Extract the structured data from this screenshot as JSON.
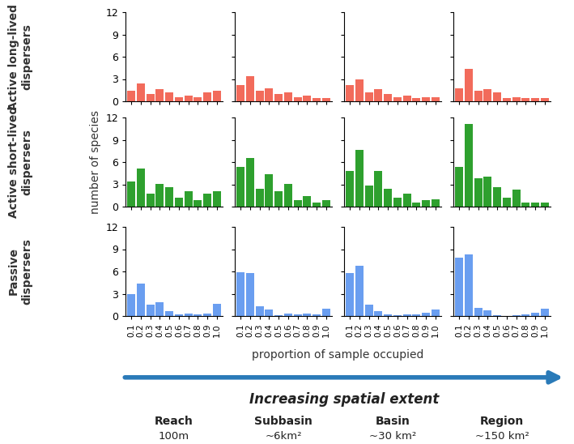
{
  "chart_data": [
    {
      "type": "bar",
      "categories": [
        "0.1",
        "0.2",
        "0.3",
        "0.4",
        "0.5",
        "0.6",
        "0.7",
        "0.8",
        "0.9",
        "1.0"
      ],
      "values": [
        1.4,
        2.4,
        1.0,
        1.6,
        1.2,
        0.6,
        0.8,
        0.6,
        1.2,
        1.4
      ],
      "color": "#f26b5b",
      "ylim": [
        0,
        12
      ],
      "yticks": [
        0,
        3,
        6,
        9,
        12
      ],
      "tick_labels": "y"
    },
    {
      "type": "bar",
      "categories": [
        "0.1",
        "0.2",
        "0.3",
        "0.4",
        "0.5",
        "0.6",
        "0.7",
        "0.8",
        "0.9",
        "1.0"
      ],
      "values": [
        2.2,
        3.4,
        1.4,
        1.8,
        1.0,
        1.2,
        0.6,
        0.8,
        0.4,
        0.4
      ],
      "color": "#f26b5b",
      "ylim": [
        0,
        12
      ],
      "yticks": [
        0,
        3,
        6,
        9,
        12
      ],
      "tick_labels": false
    },
    {
      "type": "bar",
      "categories": [
        "0.1",
        "0.2",
        "0.3",
        "0.4",
        "0.5",
        "0.6",
        "0.7",
        "0.8",
        "0.9",
        "1.0"
      ],
      "values": [
        2.2,
        3.0,
        1.2,
        1.6,
        1.0,
        0.6,
        0.8,
        0.4,
        0.6,
        0.6
      ],
      "color": "#f26b5b",
      "ylim": [
        0,
        12
      ],
      "yticks": [
        0,
        3,
        6,
        9,
        12
      ],
      "tick_labels": false
    },
    {
      "type": "bar",
      "categories": [
        "0.1",
        "0.2",
        "0.3",
        "0.4",
        "0.5",
        "0.6",
        "0.7",
        "0.8",
        "0.9",
        "1.0"
      ],
      "values": [
        1.8,
        4.4,
        1.4,
        1.6,
        1.2,
        0.4,
        0.6,
        0.4,
        0.4,
        0.4
      ],
      "color": "#f26b5b",
      "ylim": [
        0,
        12
      ],
      "yticks": [
        0,
        3,
        6,
        9,
        12
      ],
      "tick_labels": false
    },
    {
      "type": "bar",
      "categories": [
        "0.1",
        "0.2",
        "0.3",
        "0.4",
        "0.5",
        "0.6",
        "0.7",
        "0.8",
        "0.9",
        "1.0"
      ],
      "values": [
        3.4,
        5.1,
        1.8,
        3.1,
        2.6,
        1.2,
        2.1,
        0.9,
        1.7,
        2.1
      ],
      "color": "#2ea02e",
      "ylim": [
        0,
        12
      ],
      "yticks": [
        0,
        3,
        6,
        9,
        12
      ],
      "tick_labels": "y",
      "y_label": "number of species"
    },
    {
      "type": "bar",
      "categories": [
        "0.1",
        "0.2",
        "0.3",
        "0.4",
        "0.5",
        "0.6",
        "0.7",
        "0.8",
        "0.9",
        "1.0"
      ],
      "values": [
        5.4,
        6.6,
        2.4,
        4.4,
        2.1,
        3.1,
        0.9,
        1.4,
        0.5,
        0.9
      ],
      "color": "#2ea02e",
      "ylim": [
        0,
        12
      ],
      "yticks": [
        0,
        3,
        6,
        9,
        12
      ],
      "tick_labels": false
    },
    {
      "type": "bar",
      "categories": [
        "0.1",
        "0.2",
        "0.3",
        "0.4",
        "0.5",
        "0.6",
        "0.7",
        "0.8",
        "0.9",
        "1.0"
      ],
      "values": [
        4.8,
        7.6,
        2.8,
        4.8,
        2.4,
        1.2,
        1.7,
        0.6,
        0.9,
        1.0
      ],
      "color": "#2ea02e",
      "ylim": [
        0,
        12
      ],
      "yticks": [
        0,
        3,
        6,
        9,
        12
      ],
      "tick_labels": false
    },
    {
      "type": "bar",
      "categories": [
        "0.1",
        "0.2",
        "0.3",
        "0.4",
        "0.5",
        "0.6",
        "0.7",
        "0.8",
        "0.9",
        "1.0"
      ],
      "values": [
        5.4,
        11.1,
        3.8,
        4.0,
        2.6,
        1.2,
        2.3,
        0.6,
        0.6,
        0.6
      ],
      "color": "#2ea02e",
      "ylim": [
        0,
        12
      ],
      "yticks": [
        0,
        3,
        6,
        9,
        12
      ],
      "tick_labels": false
    },
    {
      "type": "bar",
      "categories": [
        "0.1",
        "0.2",
        "0.3",
        "0.4",
        "0.5",
        "0.6",
        "0.7",
        "0.8",
        "0.9",
        "1.0"
      ],
      "values": [
        2.9,
        4.4,
        1.5,
        1.9,
        0.7,
        0.2,
        0.3,
        0.2,
        0.3,
        1.6
      ],
      "color": "#6a9ef0",
      "ylim": [
        0,
        12
      ],
      "yticks": [
        0,
        3,
        6,
        9,
        12
      ]
    },
    {
      "type": "bar",
      "categories": [
        "0.1",
        "0.2",
        "0.3",
        "0.4",
        "0.5",
        "0.6",
        "0.7",
        "0.8",
        "0.9",
        "1.0"
      ],
      "values": [
        5.9,
        5.8,
        1.3,
        0.9,
        0.1,
        0.3,
        0.2,
        0.3,
        0.2,
        1.0
      ],
      "color": "#6a9ef0",
      "ylim": [
        0,
        12
      ],
      "yticks": [
        0,
        3,
        6,
        9,
        12
      ],
      "tick_labels": "x"
    },
    {
      "type": "bar",
      "categories": [
        "0.1",
        "0.2",
        "0.3",
        "0.4",
        "0.5",
        "0.6",
        "0.7",
        "0.8",
        "0.9",
        "1.0"
      ],
      "values": [
        5.8,
        6.8,
        1.5,
        0.7,
        0.2,
        0.1,
        0.2,
        0.2,
        0.4,
        0.9
      ],
      "color": "#6a9ef0",
      "ylim": [
        0,
        12
      ],
      "yticks": [
        0,
        3,
        6,
        9,
        12
      ],
      "tick_labels": "x"
    },
    {
      "type": "bar",
      "categories": [
        "0.1",
        "0.2",
        "0.3",
        "0.4",
        "0.5",
        "0.6",
        "0.7",
        "0.8",
        "0.9",
        "1.0"
      ],
      "values": [
        7.9,
        8.3,
        1.1,
        0.8,
        0.1,
        0.0,
        0.1,
        0.2,
        0.4,
        1.0
      ],
      "color": "#6a9ef0",
      "ylim": [
        0,
        12
      ],
      "yticks": [
        0,
        3,
        6,
        9,
        12
      ],
      "tick_labels": "x"
    }
  ],
  "row_labels": [
    "Active long-lived\ndispersers",
    "Active short-lived\ndispersers",
    "Passive\ndispersers"
  ],
  "x_label": "proportion of sample occupied",
  "arrow_label": "Increasing spatial extent",
  "column_labels": [
    {
      "name": "Reach",
      "extent": "100m"
    },
    {
      "name": "Subbasin",
      "extent": "~6km²"
    },
    {
      "name": "Basin",
      "extent": "~30 km²"
    },
    {
      "name": "Region",
      "extent": "~150 km²"
    }
  ]
}
